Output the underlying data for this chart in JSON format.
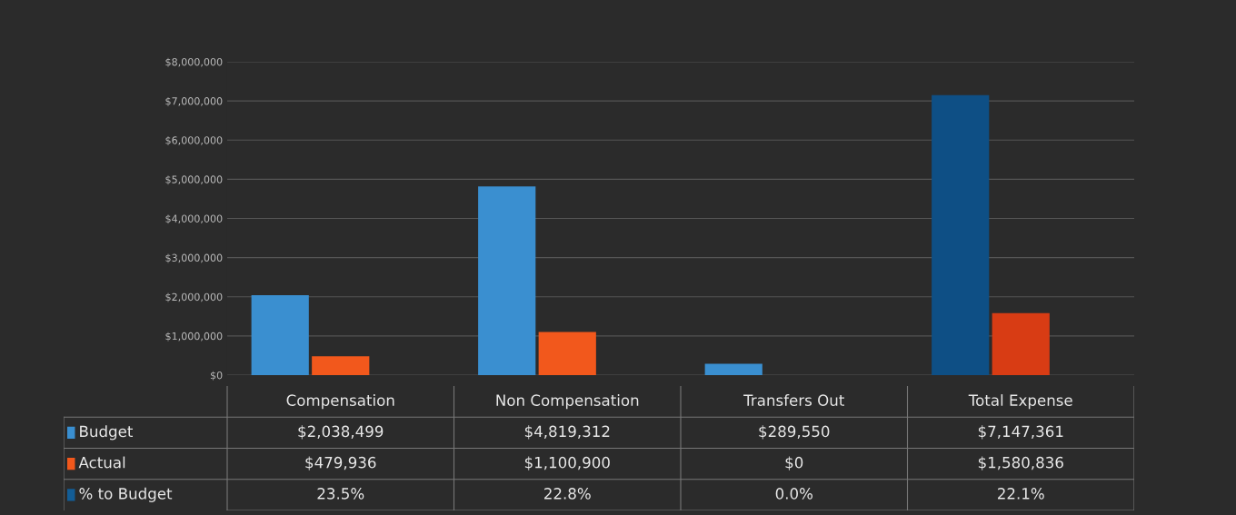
{
  "chart_data": {
    "type": "bar",
    "categories": [
      "Compensation",
      "Non Compensation",
      "Transfers Out",
      "Total Expense"
    ],
    "series": [
      {
        "name": "Budget",
        "color": "#3a8fd0",
        "colors": [
          "#3a8fd0",
          "#3a8fd0",
          "#3a8fd0",
          "#0e4f85"
        ],
        "values": [
          2038499,
          4819312,
          289550,
          7147361
        ],
        "value_labels": [
          "$2,038,499",
          "$4,819,312",
          "$289,550",
          "$7,147,361"
        ]
      },
      {
        "name": "Actual",
        "color": "#f2581c",
        "colors": [
          "#f2581c",
          "#f2581c",
          "#f2581c",
          "#d83c14"
        ],
        "values": [
          479936,
          1100900,
          0,
          1580836
        ],
        "value_labels": [
          "$479,936",
          "$1,100,900",
          "$0",
          "$1,580,836"
        ]
      },
      {
        "name": "% to Budget",
        "color": "#135d96",
        "values": [
          23.5,
          22.8,
          0.0,
          22.1
        ],
        "value_labels": [
          "23.5%",
          "22.8%",
          "0.0%",
          "22.1%"
        ]
      }
    ],
    "ylim": [
      0,
      8000000
    ],
    "yticks": [
      {
        "value": 0,
        "label": "$0"
      },
      {
        "value": 1000000,
        "label": "$1,000,000"
      },
      {
        "value": 2000000,
        "label": "$2,000,000"
      },
      {
        "value": 3000000,
        "label": "$3,000,000"
      },
      {
        "value": 4000000,
        "label": "$4,000,000"
      },
      {
        "value": 5000000,
        "label": "$5,000,000"
      },
      {
        "value": 6000000,
        "label": "$6,000,000"
      },
      {
        "value": 7000000,
        "label": "$7,000,000"
      },
      {
        "value": 8000000,
        "label": "$8,000,000"
      }
    ],
    "grid": "y",
    "legend": "bottom left"
  }
}
